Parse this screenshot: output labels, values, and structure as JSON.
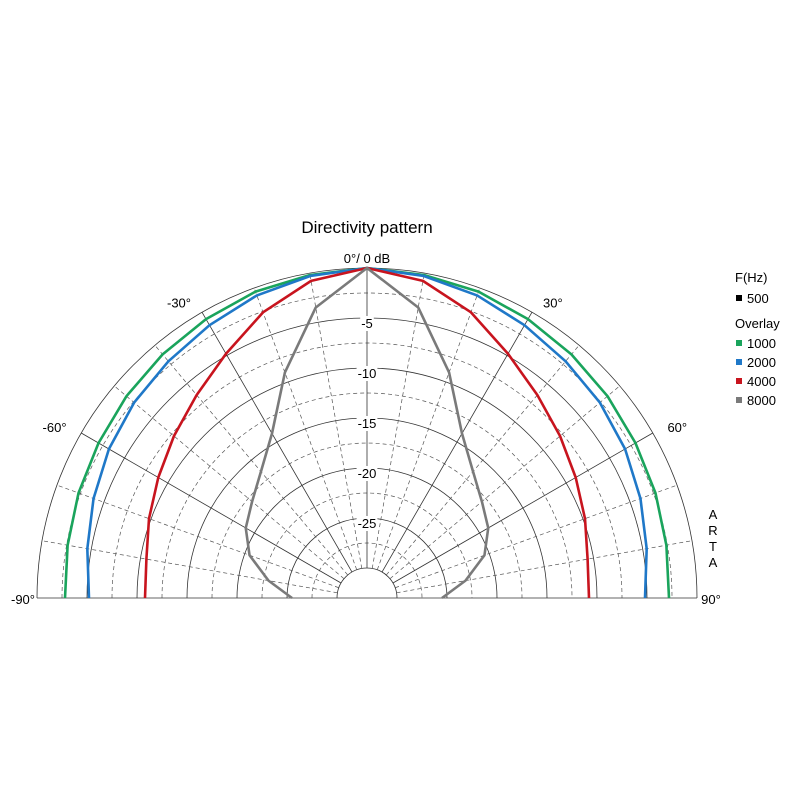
{
  "chart_data": {
    "type": "polar",
    "title": "Directivity pattern",
    "radial_unit_label": "0°/ 0 dB",
    "radial_ticks": [
      {
        "db": -5,
        "label": "-5"
      },
      {
        "db": -10,
        "label": "-10"
      },
      {
        "db": -15,
        "label": "-15"
      },
      {
        "db": -20,
        "label": "-20"
      },
      {
        "db": -25,
        "label": "-25"
      }
    ],
    "radial_range_db": [
      -30,
      0
    ],
    "angle_range_deg": [
      -90,
      90
    ],
    "angle_labels": [
      {
        "angle": -90,
        "label": "-90°"
      },
      {
        "angle": -60,
        "label": "-60°"
      },
      {
        "angle": -30,
        "label": "-30°"
      },
      {
        "angle": 30,
        "label": "30°"
      },
      {
        "angle": 60,
        "label": "60°"
      },
      {
        "angle": 90,
        "label": "90°"
      }
    ],
    "watermark": "ARTA",
    "legend": {
      "header": "F(Hz)",
      "base": {
        "label": "500",
        "color": "#000000"
      },
      "overlay_title": "Overlay",
      "position": "right"
    },
    "angles": [
      0,
      10,
      20,
      30,
      40,
      50,
      60,
      70,
      80,
      90
    ],
    "series": [
      {
        "name": "1000",
        "color": "#1aa45c",
        "values": [
          0,
          -0.2,
          -0.4,
          -0.8,
          -1.2,
          -1.6,
          -2.0,
          -2.3,
          -2.6,
          -2.8
        ]
      },
      {
        "name": "2000",
        "color": "#1f78c8",
        "values": [
          0,
          -0.3,
          -0.8,
          -1.5,
          -2.1,
          -2.6,
          -3.2,
          -3.9,
          -4.6,
          -5.2
        ]
      },
      {
        "name": "4000",
        "color": "#c8141e",
        "values": [
          0,
          -0.8,
          -2.6,
          -4.8,
          -6.5,
          -7.8,
          -8.9,
          -9.8,
          -10.6,
          -10.8
        ]
      },
      {
        "name": "8000",
        "color": "#7a7a7a",
        "values": [
          0,
          -3.5,
          -9.0,
          -14.0,
          -16.5,
          -18.0,
          -19.0,
          -20.5,
          -23.0,
          -25.5
        ]
      }
    ]
  }
}
